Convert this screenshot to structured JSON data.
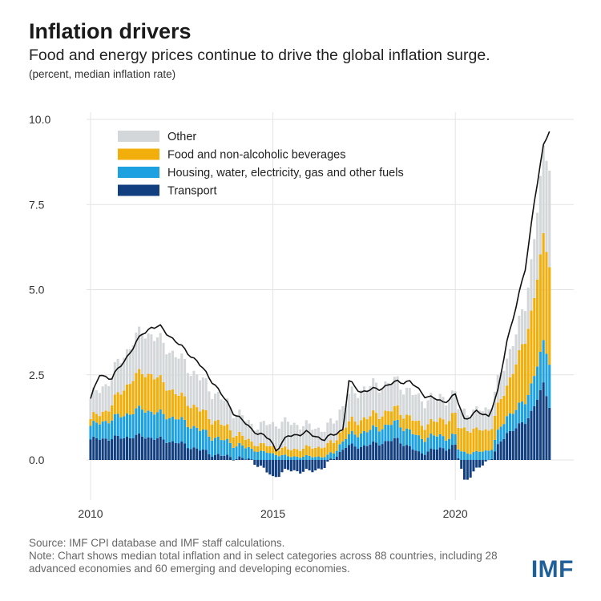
{
  "title": "Inflation drivers",
  "subtitle": "Food and energy prices continue to drive the global inflation surge.",
  "units": "(percent, median inflation rate)",
  "source": "Source: IMF CPI database and IMF staff calculations.",
  "note": "Note: Chart shows median total inflation and in select categories across 88 countries, including 28 advanced economies and 60 emerging and developing economies.",
  "logo": "IMF",
  "chart_data": {
    "type": "bar",
    "subtype": "stacked bar with total line",
    "frequency": "monthly",
    "x_start": "2010-01",
    "x_end": "2022-08",
    "x_ticks": [
      "2010",
      "2015",
      "2020"
    ],
    "y_ticks": [
      "0.0",
      "2.5",
      "5.0",
      "7.5",
      "10.0"
    ],
    "ylim": [
      -1.2,
      10.0
    ],
    "grid": true,
    "legend_position": "top-left",
    "colors": {
      "other": "#d3d7d9",
      "food": "#f2ae0b",
      "housing": "#1ea1e0",
      "transport": "#123f80",
      "total_line": "#111111"
    },
    "series_names": {
      "other": "Other",
      "food": "Food and non-alcoholic beverages",
      "housing": "Housing, water, electricity, gas and other fuels",
      "transport": "Transport"
    },
    "keypoints": {
      "total": [
        [
          "2010-01",
          1.8
        ],
        [
          "2010-04",
          2.5
        ],
        [
          "2010-08",
          2.4
        ],
        [
          "2010-12",
          2.9
        ],
        [
          "2011-06",
          3.7
        ],
        [
          "2011-09",
          3.9
        ],
        [
          "2011-12",
          3.9
        ],
        [
          "2012-06",
          3.4
        ],
        [
          "2012-12",
          2.9
        ],
        [
          "2013-06",
          2.2
        ],
        [
          "2013-12",
          1.4
        ],
        [
          "2014-06",
          0.9
        ],
        [
          "2014-12",
          0.6
        ],
        [
          "2015-02",
          0.3
        ],
        [
          "2015-06",
          0.7
        ],
        [
          "2015-12",
          0.8
        ],
        [
          "2016-06",
          0.6
        ],
        [
          "2016-12",
          0.9
        ],
        [
          "2017-02",
          2.3
        ],
        [
          "2017-06",
          2.0
        ],
        [
          "2017-12",
          2.1
        ],
        [
          "2018-06",
          2.3
        ],
        [
          "2018-10",
          2.3
        ],
        [
          "2019-03",
          1.9
        ],
        [
          "2019-09",
          1.7
        ],
        [
          "2020-01",
          1.9
        ],
        [
          "2020-04",
          1.2
        ],
        [
          "2020-08",
          1.4
        ],
        [
          "2020-12",
          1.3
        ],
        [
          "2021-03",
          2.0
        ],
        [
          "2021-06",
          3.5
        ],
        [
          "2021-09",
          4.5
        ],
        [
          "2021-12",
          5.6
        ],
        [
          "2022-03",
          7.6
        ],
        [
          "2022-06",
          9.2
        ],
        [
          "2022-08",
          9.7
        ]
      ],
      "transport": [
        [
          "2010-01",
          0.6
        ],
        [
          "2011-06",
          0.7
        ],
        [
          "2012-06",
          0.5
        ],
        [
          "2013-06",
          0.15
        ],
        [
          "2014-06",
          0.0
        ],
        [
          "2015-01",
          -0.5
        ],
        [
          "2015-06",
          -0.3
        ],
        [
          "2016-01",
          -0.35
        ],
        [
          "2016-06",
          -0.2
        ],
        [
          "2017-01",
          0.4
        ],
        [
          "2017-06",
          0.4
        ],
        [
          "2018-06",
          0.6
        ],
        [
          "2019-01",
          0.2
        ],
        [
          "2019-06",
          0.3
        ],
        [
          "2020-01",
          0.4
        ],
        [
          "2020-04",
          -0.6
        ],
        [
          "2020-08",
          -0.3
        ],
        [
          "2021-01",
          0.1
        ],
        [
          "2021-06",
          0.8
        ],
        [
          "2021-12",
          1.1
        ],
        [
          "2022-03",
          1.6
        ],
        [
          "2022-06",
          2.2
        ],
        [
          "2022-08",
          1.6
        ]
      ],
      "housing": [
        [
          "2010-01",
          0.4
        ],
        [
          "2011-06",
          0.8
        ],
        [
          "2012-06",
          0.7
        ],
        [
          "2013-06",
          0.5
        ],
        [
          "2014-06",
          0.3
        ],
        [
          "2015-06",
          0.1
        ],
        [
          "2016-06",
          0.1
        ],
        [
          "2017-06",
          0.4
        ],
        [
          "2018-06",
          0.5
        ],
        [
          "2019-06",
          0.4
        ],
        [
          "2020-06",
          0.2
        ],
        [
          "2021-01",
          0.3
        ],
        [
          "2021-06",
          0.5
        ],
        [
          "2021-12",
          0.6
        ],
        [
          "2022-06",
          1.2
        ],
        [
          "2022-08",
          1.3
        ]
      ],
      "food": [
        [
          "2010-01",
          0.2
        ],
        [
          "2010-06",
          0.3
        ],
        [
          "2011-03",
          1.0
        ],
        [
          "2011-09",
          1.1
        ],
        [
          "2012-06",
          0.7
        ],
        [
          "2013-06",
          0.5
        ],
        [
          "2014-06",
          0.2
        ],
        [
          "2015-06",
          0.2
        ],
        [
          "2016-06",
          0.3
        ],
        [
          "2017-06",
          0.4
        ],
        [
          "2018-06",
          0.4
        ],
        [
          "2019-06",
          0.4
        ],
        [
          "2020-04",
          0.7
        ],
        [
          "2020-12",
          0.6
        ],
        [
          "2021-06",
          0.9
        ],
        [
          "2021-12",
          1.8
        ],
        [
          "2022-03",
          2.3
        ],
        [
          "2022-06",
          3.1
        ],
        [
          "2022-08",
          2.9
        ]
      ],
      "other": [
        [
          "2010-01",
          0.6
        ],
        [
          "2011-06",
          1.2
        ],
        [
          "2012-06",
          1.1
        ],
        [
          "2013-06",
          0.8
        ],
        [
          "2014-06",
          0.5
        ],
        [
          "2015-06",
          0.8
        ],
        [
          "2016-06",
          0.5
        ],
        [
          "2017-06",
          0.9
        ],
        [
          "2018-06",
          0.8
        ],
        [
          "2019-06",
          0.7
        ],
        [
          "2020-06",
          0.5
        ],
        [
          "2021-06",
          0.8
        ],
        [
          "2021-12",
          1.0
        ],
        [
          "2022-06",
          2.5
        ],
        [
          "2022-08",
          2.9
        ]
      ]
    }
  }
}
